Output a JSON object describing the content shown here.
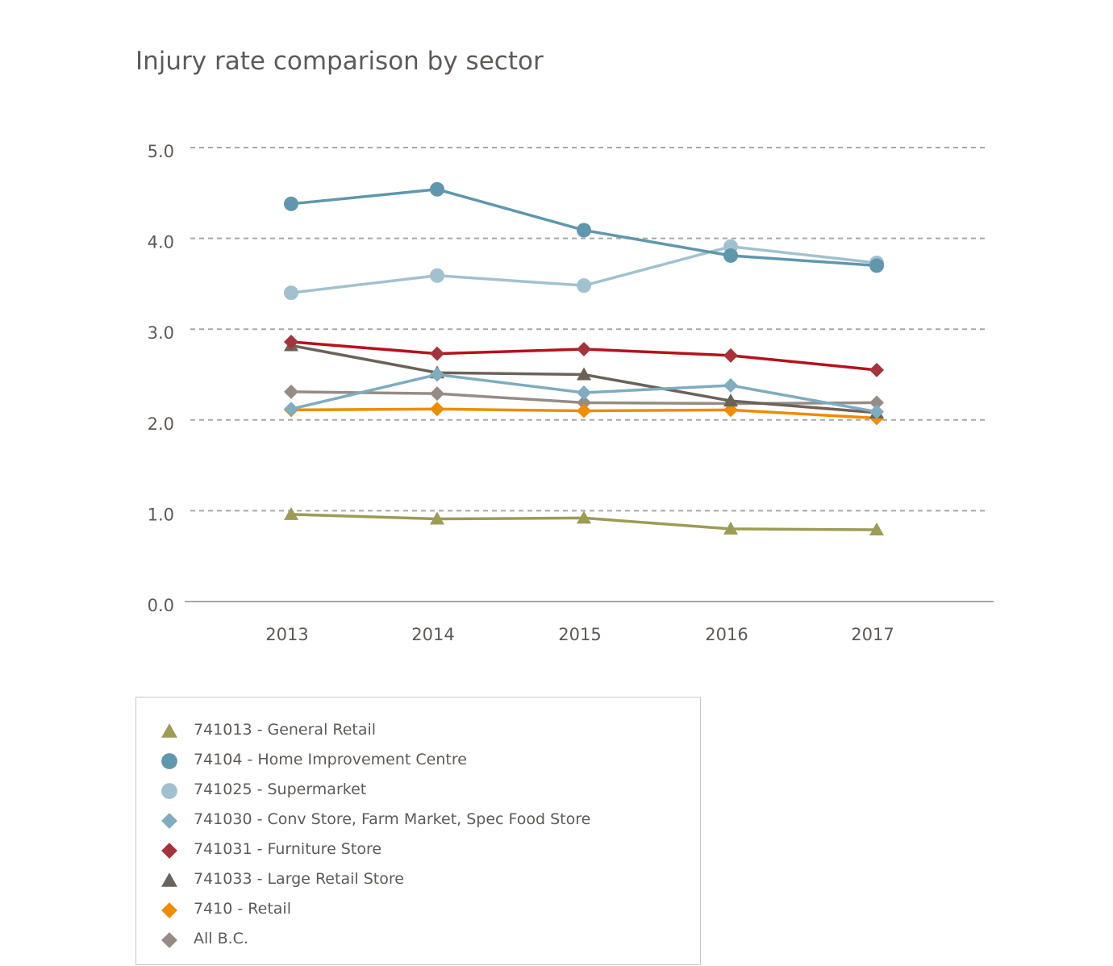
{
  "chart_data": {
    "type": "line",
    "title": "Injury rate comparison by sector",
    "xlabel": "",
    "ylabel": "",
    "categories": [
      "2013",
      "2014",
      "2015",
      "2016",
      "2017"
    ],
    "ylim": [
      0,
      5
    ],
    "yticks": [
      "0.0",
      "1.0",
      "2.0",
      "3.0",
      "4.0",
      "5.0"
    ],
    "grid": true,
    "legend_placement": "bottom-left",
    "series": [
      {
        "name": "741013 - General Retail",
        "color": "#9c9c55",
        "marker": "triangle",
        "values": [
          0.96,
          0.91,
          0.92,
          0.8,
          0.79
        ]
      },
      {
        "name": "74104 - Home Improvement Centre",
        "color": "#5f97ad",
        "marker": "circle",
        "values": [
          4.38,
          4.54,
          4.09,
          3.81,
          3.7
        ]
      },
      {
        "name": "741025 - Supermarket",
        "color": "#a2c1cf",
        "marker": "circle",
        "values": [
          3.4,
          3.59,
          3.48,
          3.91,
          3.73
        ]
      },
      {
        "name": "741030 - Conv Store, Farm Market, Spec Food Store",
        "color": "#7eacc0",
        "marker": "diamond",
        "values": [
          2.12,
          2.5,
          2.3,
          2.38,
          2.09
        ]
      },
      {
        "name": "741031 - Furniture Store",
        "color": "#b5121b",
        "marker_color": "#a5333b",
        "marker": "diamond",
        "values": [
          2.86,
          2.73,
          2.78,
          2.71,
          2.55
        ]
      },
      {
        "name": "741033 - Large Retail Store",
        "color": "#6b6259",
        "marker": "triangle",
        "values": [
          2.82,
          2.52,
          2.5,
          2.21,
          2.08
        ]
      },
      {
        "name": "7410 - Retail",
        "color": "#ef8c00",
        "marker": "diamond",
        "values": [
          2.11,
          2.12,
          2.1,
          2.11,
          2.02
        ]
      },
      {
        "name": "All B.C.",
        "color": "#958c85",
        "marker": "diamond",
        "values": [
          2.31,
          2.29,
          2.19,
          2.18,
          2.19
        ]
      }
    ]
  }
}
